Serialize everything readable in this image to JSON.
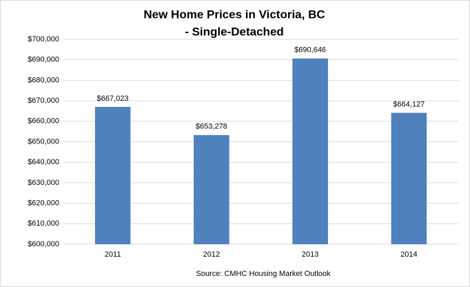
{
  "chart_data": {
    "type": "bar",
    "title": "New Home Prices in Victoria, BC",
    "subtitle": "- Single-Detached",
    "note": "Source: CMHC Housing Market Outlook",
    "categories": [
      "2011",
      "2012",
      "2013",
      "2014"
    ],
    "values": [
      667023,
      653278,
      690646,
      664127
    ],
    "value_labels": [
      "$667,023",
      "$653,278",
      "$690,646",
      "$664,127"
    ],
    "color": "#4f81bd",
    "ylim": [
      600000,
      700000
    ],
    "yticks": [
      {
        "value": 600000,
        "label": "$600,000"
      },
      {
        "value": 610000,
        "label": "$610,000"
      },
      {
        "value": 620000,
        "label": "$620,000"
      },
      {
        "value": 630000,
        "label": "$630,000"
      },
      {
        "value": 640000,
        "label": "$640,000"
      },
      {
        "value": 650000,
        "label": "$650,000"
      },
      {
        "value": 660000,
        "label": "$660,000"
      },
      {
        "value": 670000,
        "label": "$670,000"
      },
      {
        "value": 680000,
        "label": "$680,000"
      },
      {
        "value": 690000,
        "label": "$690,000"
      },
      {
        "value": 700000,
        "label": "$700,000"
      }
    ],
    "grid": true
  }
}
